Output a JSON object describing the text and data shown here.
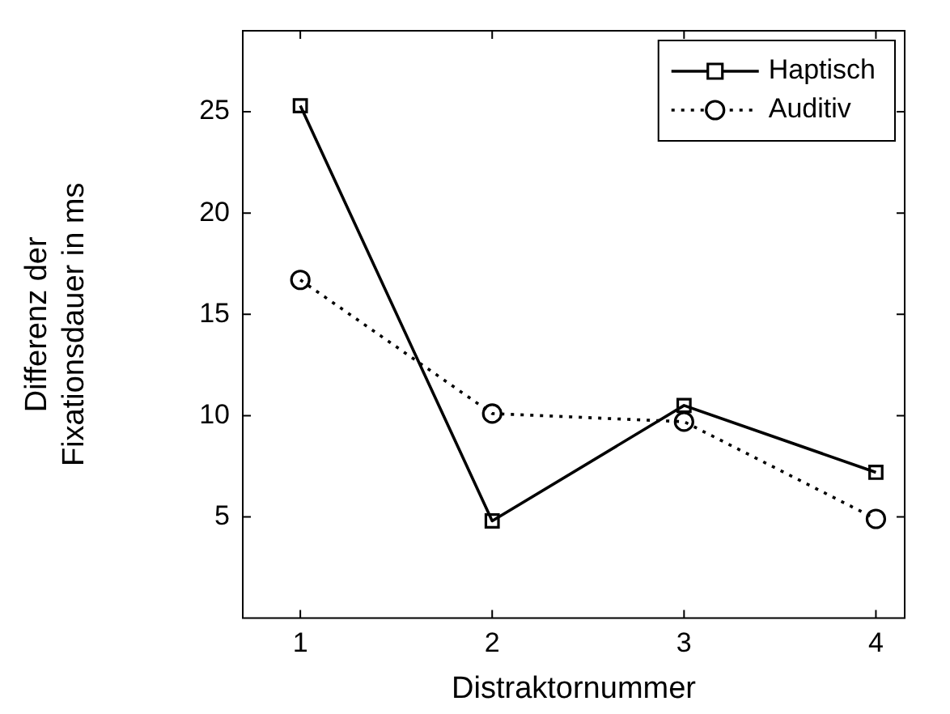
{
  "chart_data": {
    "type": "line",
    "xlabel": "Distraktornummer",
    "ylabel": "Differenz der\nFixationsdauer in ms",
    "x": [
      1,
      2,
      3,
      4
    ],
    "xlim": [
      0.7,
      4.15
    ],
    "xticks": [
      1,
      2,
      3,
      4
    ],
    "ylim": [
      0,
      29
    ],
    "yticks": [
      5,
      10,
      15,
      20,
      25
    ],
    "grid": false,
    "legend": "top right",
    "series": [
      {
        "name": "Haptisch",
        "color": "#000000",
        "values": [
          25.3,
          4.8,
          10.5,
          7.2
        ],
        "marker": "square",
        "line_style": "solid"
      },
      {
        "name": "Auditiv",
        "color": "#000000",
        "values": [
          16.7,
          10.1,
          9.7,
          4.9
        ],
        "marker": "circle",
        "line_style": "dotted"
      }
    ]
  }
}
